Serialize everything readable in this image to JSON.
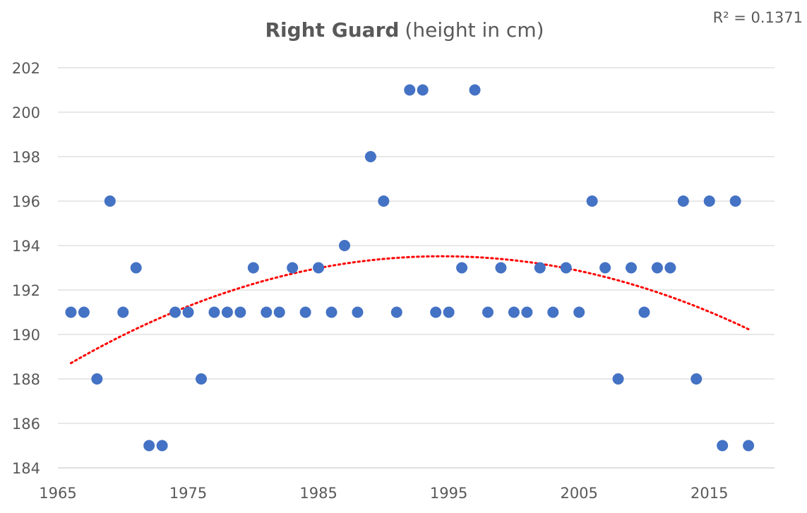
{
  "chart_data": {
    "type": "scatter",
    "title": "Right Guard",
    "subtitle": "(height in cm)",
    "annotation": "R² = 0.1371",
    "xlim": [
      1965,
      2020
    ],
    "ylim": [
      184,
      202
    ],
    "x_ticks": [
      1965,
      1975,
      1985,
      1995,
      2005,
      2015
    ],
    "y_ticks": [
      184,
      186,
      188,
      190,
      192,
      194,
      196,
      198,
      200,
      202
    ],
    "grid": "horizontal",
    "marker_color": "#4472c4",
    "trend_color": "#ff0000",
    "trendline": {
      "type": "polynomial",
      "order": 2,
      "from": 1966,
      "to": 2018
    },
    "points": [
      {
        "x": 1966,
        "y": 191
      },
      {
        "x": 1967,
        "y": 191
      },
      {
        "x": 1968,
        "y": 188
      },
      {
        "x": 1969,
        "y": 196
      },
      {
        "x": 1970,
        "y": 191
      },
      {
        "x": 1971,
        "y": 193
      },
      {
        "x": 1972,
        "y": 185
      },
      {
        "x": 1973,
        "y": 185
      },
      {
        "x": 1974,
        "y": 191
      },
      {
        "x": 1975,
        "y": 191
      },
      {
        "x": 1976,
        "y": 188
      },
      {
        "x": 1977,
        "y": 191
      },
      {
        "x": 1978,
        "y": 191
      },
      {
        "x": 1979,
        "y": 191
      },
      {
        "x": 1980,
        "y": 193
      },
      {
        "x": 1981,
        "y": 191
      },
      {
        "x": 1982,
        "y": 191
      },
      {
        "x": 1983,
        "y": 193
      },
      {
        "x": 1984,
        "y": 191
      },
      {
        "x": 1985,
        "y": 193
      },
      {
        "x": 1986,
        "y": 191
      },
      {
        "x": 1987,
        "y": 194
      },
      {
        "x": 1988,
        "y": 191
      },
      {
        "x": 1989,
        "y": 198
      },
      {
        "x": 1990,
        "y": 196
      },
      {
        "x": 1991,
        "y": 191
      },
      {
        "x": 1992,
        "y": 201
      },
      {
        "x": 1993,
        "y": 201
      },
      {
        "x": 1994,
        "y": 191
      },
      {
        "x": 1995,
        "y": 191
      },
      {
        "x": 1996,
        "y": 193
      },
      {
        "x": 1997,
        "y": 201
      },
      {
        "x": 1998,
        "y": 191
      },
      {
        "x": 1999,
        "y": 193
      },
      {
        "x": 2000,
        "y": 191
      },
      {
        "x": 2001,
        "y": 191
      },
      {
        "x": 2002,
        "y": 193
      },
      {
        "x": 2003,
        "y": 191
      },
      {
        "x": 2004,
        "y": 193
      },
      {
        "x": 2005,
        "y": 191
      },
      {
        "x": 2006,
        "y": 196
      },
      {
        "x": 2007,
        "y": 193
      },
      {
        "x": 2008,
        "y": 188
      },
      {
        "x": 2009,
        "y": 193
      },
      {
        "x": 2010,
        "y": 191
      },
      {
        "x": 2011,
        "y": 193
      },
      {
        "x": 2012,
        "y": 193
      },
      {
        "x": 2013,
        "y": 196
      },
      {
        "x": 2014,
        "y": 188
      },
      {
        "x": 2015,
        "y": 196
      },
      {
        "x": 2016,
        "y": 185
      },
      {
        "x": 2017,
        "y": 196
      },
      {
        "x": 2018,
        "y": 185
      }
    ]
  }
}
